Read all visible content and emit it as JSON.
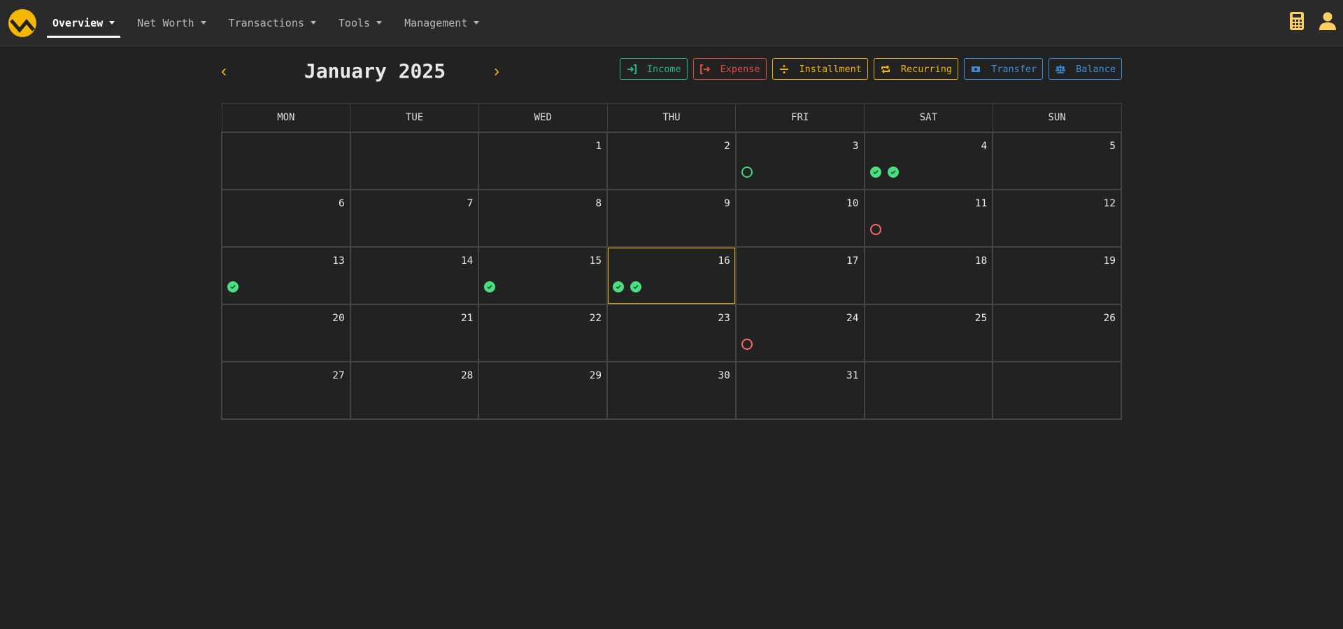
{
  "nav": {
    "items": [
      {
        "label": "Overview",
        "active": true
      },
      {
        "label": "Net Worth"
      },
      {
        "label": "Transactions"
      },
      {
        "label": "Tools"
      },
      {
        "label": "Management"
      }
    ],
    "accent": "#f5b800"
  },
  "calendar": {
    "title": "January 2025",
    "buttons": [
      {
        "label": "Income",
        "icon": "sign-in-icon",
        "color": "#1fb67f"
      },
      {
        "label": "Expense",
        "icon": "sign-out-icon",
        "color": "#e24a3f"
      },
      {
        "label": "Installment",
        "icon": "divide-icon",
        "color": "#f0b400"
      },
      {
        "label": "Recurring",
        "icon": "repeat-icon",
        "color": "#f0b400"
      },
      {
        "label": "Transfer",
        "icon": "money-transfer-icon",
        "color": "#3a8fd9"
      },
      {
        "label": "Balance",
        "icon": "scale-icon",
        "color": "#3a8fd9"
      }
    ],
    "weekdays": [
      "MON",
      "TUE",
      "WED",
      "THU",
      "FRI",
      "SAT",
      "SUN"
    ],
    "today": "16",
    "weeks": [
      [
        {
          "day": ""
        },
        {
          "day": ""
        },
        {
          "day": "1"
        },
        {
          "day": "2"
        },
        {
          "day": "3",
          "events": [
            {
              "kind": "pending",
              "color": "#3ed67a"
            }
          ]
        },
        {
          "day": "4",
          "events": [
            {
              "kind": "done",
              "color": "#4ade80"
            },
            {
              "kind": "done",
              "color": "#4ade80"
            }
          ]
        },
        {
          "day": "5"
        }
      ],
      [
        {
          "day": "6"
        },
        {
          "day": "7"
        },
        {
          "day": "8"
        },
        {
          "day": "9"
        },
        {
          "day": "10"
        },
        {
          "day": "11",
          "events": [
            {
              "kind": "pending",
              "color": "#ef6b6b"
            }
          ]
        },
        {
          "day": "12"
        }
      ],
      [
        {
          "day": "13",
          "events": [
            {
              "kind": "done",
              "color": "#4ade80"
            }
          ]
        },
        {
          "day": "14"
        },
        {
          "day": "15",
          "events": [
            {
              "kind": "done",
              "color": "#4ade80"
            }
          ]
        },
        {
          "day": "16",
          "events": [
            {
              "kind": "done",
              "color": "#4ade80"
            },
            {
              "kind": "done",
              "color": "#4ade80"
            }
          ]
        },
        {
          "day": "17"
        },
        {
          "day": "18"
        },
        {
          "day": "19"
        }
      ],
      [
        {
          "day": "20"
        },
        {
          "day": "21"
        },
        {
          "day": "22"
        },
        {
          "day": "23"
        },
        {
          "day": "24",
          "events": [
            {
              "kind": "pending",
              "color": "#ef6b6b"
            }
          ]
        },
        {
          "day": "25"
        },
        {
          "day": "26"
        }
      ],
      [
        {
          "day": "27"
        },
        {
          "day": "28"
        },
        {
          "day": "29"
        },
        {
          "day": "30"
        },
        {
          "day": "31"
        },
        {
          "day": ""
        },
        {
          "day": ""
        }
      ]
    ]
  }
}
